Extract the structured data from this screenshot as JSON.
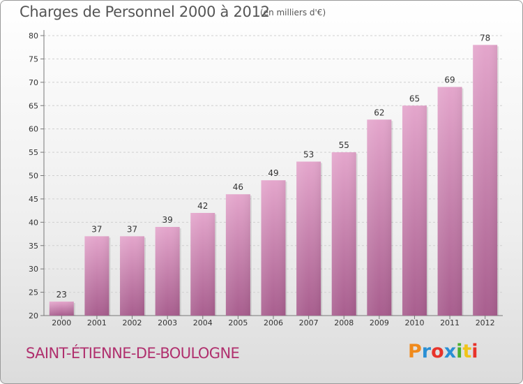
{
  "title": "Charges de Personnel 2000 à 2012",
  "subtitle": "(en milliers d'€)",
  "city": "SAINT-ÉTIENNE-DE-BOULOGNE",
  "logo": {
    "text": "Proxiti",
    "colors": [
      "#f08a1c",
      "#2a8fd4",
      "#e8332a",
      "#2a8fd4",
      "#4caf2e",
      "#f0c419",
      "#e8332a"
    ]
  },
  "colors": {
    "bar_top": "#e4a6cc",
    "bar_bottom": "#a85e8e",
    "title": "#555555",
    "city": "#b0306e"
  },
  "chart_data": {
    "type": "bar",
    "title": "Charges de Personnel 2000 à 2012",
    "subtitle": "(en milliers d'€)",
    "categories": [
      "2000",
      "2001",
      "2002",
      "2003",
      "2004",
      "2005",
      "2006",
      "2007",
      "2008",
      "2009",
      "2010",
      "2011",
      "2012"
    ],
    "values": [
      23,
      37,
      37,
      39,
      42,
      46,
      49,
      53,
      55,
      62,
      65,
      69,
      78
    ],
    "ylim": [
      20,
      80
    ],
    "yticks": [
      20,
      25,
      30,
      35,
      40,
      45,
      50,
      55,
      60,
      65,
      70,
      75,
      80
    ],
    "grid": true,
    "data_labels": true
  }
}
